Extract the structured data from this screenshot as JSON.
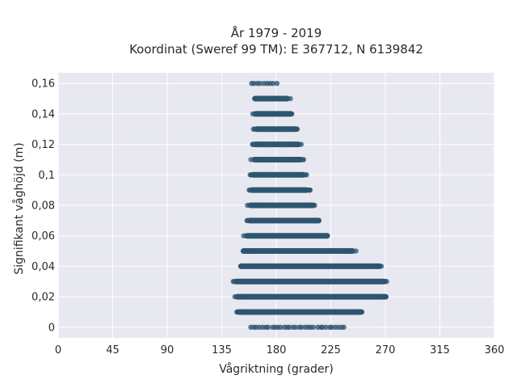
{
  "chart_data": {
    "type": "scatter",
    "title": "År 1979 - 2019",
    "subtitle": "Koordinat (Sweref 99 TM): E 367712, N 6139842",
    "xlabel": "Vågriktning (grader)",
    "ylabel": "Signifikant våghöjd (m)",
    "xlim": [
      0,
      360
    ],
    "ylim": [
      -0.007,
      0.167
    ],
    "x_ticks": [
      0,
      45,
      90,
      135,
      180,
      225,
      270,
      315,
      360
    ],
    "x_tick_labels": [
      "0",
      "45",
      "90",
      "135",
      "180",
      "225",
      "270",
      "315",
      "360"
    ],
    "y_ticks": [
      0,
      0.02,
      0.04,
      0.06,
      0.08,
      0.1,
      0.12,
      0.14,
      0.16
    ],
    "y_tick_labels": [
      "0",
      "0,02",
      "0,04",
      "0,06",
      "0,08",
      "0,1",
      "0,12",
      "0,14",
      "0,16"
    ],
    "grid": true,
    "background": "#e8e8f0",
    "marker_color": "#2e5670",
    "series": [
      {
        "description": "Dense horizontal bands: each row has significant wave height y with direction range [x_min, x_max]",
        "bands": [
          {
            "y": 0.0,
            "x_min": 159,
            "x_max": 236,
            "sparse": true
          },
          {
            "y": 0.01,
            "x_min": 146,
            "x_max": 253
          },
          {
            "y": 0.02,
            "x_min": 145,
            "x_max": 273
          },
          {
            "y": 0.03,
            "x_min": 144,
            "x_max": 272
          },
          {
            "y": 0.04,
            "x_min": 148,
            "x_max": 268
          },
          {
            "y": 0.05,
            "x_min": 150,
            "x_max": 246
          },
          {
            "y": 0.06,
            "x_min": 153,
            "x_max": 225
          },
          {
            "y": 0.07,
            "x_min": 155,
            "x_max": 218
          },
          {
            "y": 0.08,
            "x_min": 156,
            "x_max": 213
          },
          {
            "y": 0.09,
            "x_min": 157,
            "x_max": 208
          },
          {
            "y": 0.1,
            "x_min": 158,
            "x_max": 205
          },
          {
            "y": 0.11,
            "x_min": 159,
            "x_max": 203
          },
          {
            "y": 0.12,
            "x_min": 160,
            "x_max": 201
          },
          {
            "y": 0.13,
            "x_min": 161,
            "x_max": 199
          },
          {
            "y": 0.14,
            "x_min": 160,
            "x_max": 195
          },
          {
            "y": 0.15,
            "x_min": 160,
            "x_max": 192
          },
          {
            "y": 0.16,
            "x_min": 159,
            "x_max": 180,
            "sparse": true
          }
        ]
      }
    ]
  }
}
